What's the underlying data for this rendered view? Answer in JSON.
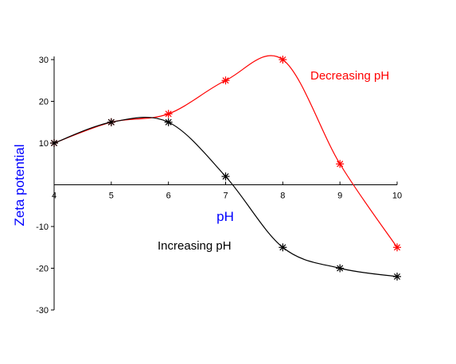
{
  "chart_data": {
    "type": "line",
    "title": "",
    "xlabel": "pH",
    "ylabel": "Zeta potential",
    "xlim": [
      4,
      10
    ],
    "ylim": [
      -30,
      30
    ],
    "x_ticks": [
      "4",
      "5",
      "6",
      "7",
      "8",
      "9",
      "10"
    ],
    "y_ticks": [
      "30",
      "20",
      "10",
      "-10",
      "-20",
      "-30"
    ],
    "axis_label_color": "#0000ff",
    "grid": false,
    "legend": "none",
    "series": [
      {
        "name": "Decreasing pH",
        "color": "#ff0000",
        "marker": "asterisk",
        "x": [
          4,
          5,
          6,
          7,
          8,
          9,
          10
        ],
        "y": [
          10,
          15,
          17,
          25,
          30,
          5,
          -15
        ]
      },
      {
        "name": "Increasing pH",
        "color": "#000000",
        "marker": "asterisk",
        "x": [
          4,
          5,
          6,
          7,
          8,
          9,
          10
        ],
        "y": [
          10,
          15,
          15,
          2,
          -15,
          -20,
          -22
        ]
      }
    ]
  }
}
